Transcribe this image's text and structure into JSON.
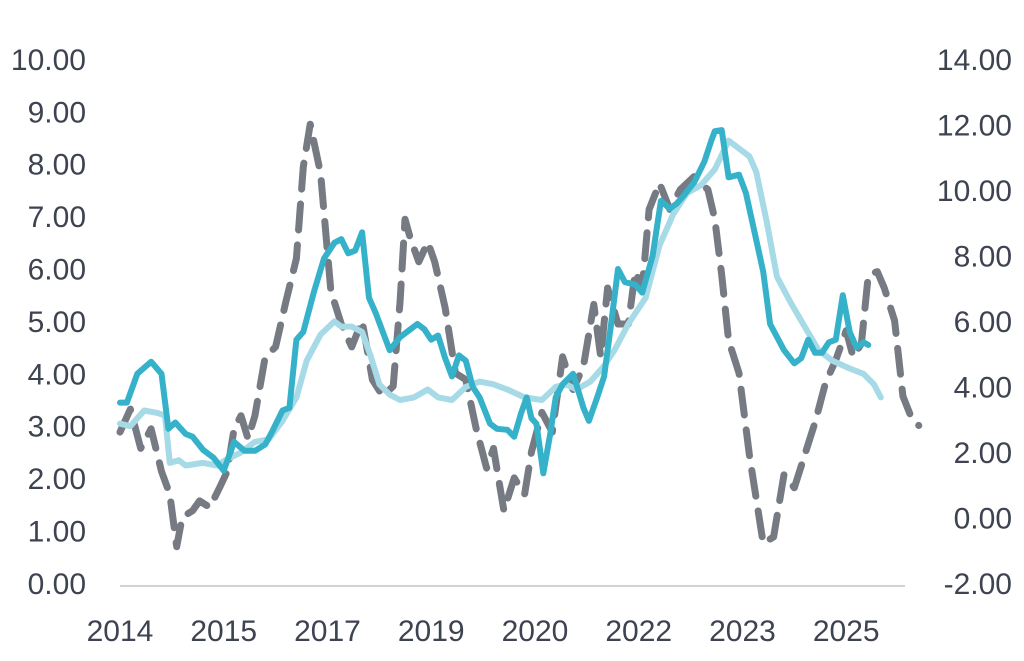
{
  "chart_data": {
    "type": "line",
    "title": "",
    "xlabel": "",
    "ylabel": "",
    "ylabel_right": "",
    "x_range": [
      2014.0,
      2025.35
    ],
    "x_tick_labels": [
      "2014",
      "2015",
      "2017",
      "2019",
      "2020",
      "2022",
      "2023",
      "2025"
    ],
    "x_tick_positions": [
      2014.0,
      2015.5,
      2017.0,
      2018.5,
      2020.0,
      2021.5,
      2023.0,
      2024.5
    ],
    "ylim_left": [
      0,
      10
    ],
    "ylim_right": [
      -2,
      14
    ],
    "y_left_tick_labels": [
      "0.00",
      "1.00",
      "2.00",
      "3.00",
      "4.00",
      "5.00",
      "6.00",
      "7.00",
      "8.00",
      "9.00",
      "10.00"
    ],
    "y_right_tick_labels": [
      "-2.00",
      "0.00",
      "2.00",
      "4.00",
      "6.00",
      "8.00",
      "10.00",
      "12.00",
      "14.00"
    ],
    "grid": false,
    "legend": "none",
    "series": [
      {
        "axis": "left",
        "style": "solid",
        "color": "#35b2c9",
        "points": [
          [
            2014.0,
            3.5
          ],
          [
            2014.1,
            3.5
          ],
          [
            2014.25,
            4.05
          ],
          [
            2014.45,
            4.28
          ],
          [
            2014.6,
            4.05
          ],
          [
            2014.7,
            3.0
          ],
          [
            2014.8,
            3.12
          ],
          [
            2014.95,
            2.9
          ],
          [
            2015.05,
            2.85
          ],
          [
            2015.2,
            2.6
          ],
          [
            2015.35,
            2.45
          ],
          [
            2015.5,
            2.2
          ],
          [
            2015.65,
            2.75
          ],
          [
            2015.8,
            2.58
          ],
          [
            2015.95,
            2.58
          ],
          [
            2016.1,
            2.7
          ],
          [
            2016.2,
            2.95
          ],
          [
            2016.35,
            3.35
          ],
          [
            2016.45,
            3.4
          ],
          [
            2016.55,
            4.7
          ],
          [
            2016.65,
            4.85
          ],
          [
            2016.8,
            5.6
          ],
          [
            2016.95,
            6.25
          ],
          [
            2017.1,
            6.55
          ],
          [
            2017.2,
            6.62
          ],
          [
            2017.3,
            6.35
          ],
          [
            2017.4,
            6.4
          ],
          [
            2017.5,
            6.75
          ],
          [
            2017.6,
            5.5
          ],
          [
            2017.7,
            5.2
          ],
          [
            2017.8,
            4.85
          ],
          [
            2017.9,
            4.5
          ],
          [
            2018.05,
            4.75
          ],
          [
            2018.2,
            4.9
          ],
          [
            2018.3,
            5.0
          ],
          [
            2018.4,
            4.9
          ],
          [
            2018.5,
            4.7
          ],
          [
            2018.6,
            4.78
          ],
          [
            2018.7,
            4.35
          ],
          [
            2018.8,
            4.0
          ],
          [
            2018.9,
            4.4
          ],
          [
            2019.0,
            4.3
          ],
          [
            2019.1,
            3.8
          ],
          [
            2019.2,
            3.6
          ],
          [
            2019.35,
            3.1
          ],
          [
            2019.45,
            3.0
          ],
          [
            2019.6,
            2.98
          ],
          [
            2019.7,
            2.85
          ],
          [
            2019.8,
            3.3
          ],
          [
            2019.88,
            3.6
          ],
          [
            2019.95,
            3.2
          ],
          [
            2020.02,
            3.1
          ],
          [
            2020.12,
            2.15
          ],
          [
            2020.22,
            2.9
          ],
          [
            2020.3,
            3.6
          ],
          [
            2020.4,
            3.85
          ],
          [
            2020.55,
            4.05
          ],
          [
            2020.62,
            3.75
          ],
          [
            2020.7,
            3.4
          ],
          [
            2020.78,
            3.15
          ],
          [
            2020.9,
            3.6
          ],
          [
            2021.0,
            4.0
          ],
          [
            2021.1,
            5.0
          ],
          [
            2021.2,
            6.05
          ],
          [
            2021.3,
            5.8
          ],
          [
            2021.45,
            5.75
          ],
          [
            2021.55,
            5.6
          ],
          [
            2021.7,
            6.3
          ],
          [
            2021.82,
            7.35
          ],
          [
            2021.95,
            7.2
          ],
          [
            2022.05,
            7.3
          ],
          [
            2022.15,
            7.45
          ],
          [
            2022.3,
            7.7
          ],
          [
            2022.45,
            8.1
          ],
          [
            2022.55,
            8.5
          ],
          [
            2022.6,
            8.68
          ],
          [
            2022.7,
            8.7
          ],
          [
            2022.8,
            7.8
          ],
          [
            2022.95,
            7.85
          ],
          [
            2023.05,
            7.5
          ],
          [
            2023.2,
            6.6
          ],
          [
            2023.3,
            6.0
          ],
          [
            2023.4,
            5.0
          ],
          [
            2023.6,
            4.5
          ],
          [
            2023.75,
            4.25
          ],
          [
            2023.85,
            4.35
          ],
          [
            2023.95,
            4.7
          ],
          [
            2024.05,
            4.45
          ],
          [
            2024.15,
            4.45
          ],
          [
            2024.25,
            4.65
          ],
          [
            2024.35,
            4.7
          ],
          [
            2024.45,
            5.55
          ],
          [
            2024.55,
            4.85
          ],
          [
            2024.65,
            4.55
          ],
          [
            2024.75,
            4.65
          ],
          [
            2024.82,
            4.6
          ]
        ]
      },
      {
        "axis": "left",
        "style": "solid",
        "color": "#a6dae6",
        "points": [
          [
            2014.0,
            3.1
          ],
          [
            2014.15,
            3.05
          ],
          [
            2014.35,
            3.35
          ],
          [
            2014.55,
            3.3
          ],
          [
            2014.65,
            3.25
          ],
          [
            2014.72,
            2.35
          ],
          [
            2014.85,
            2.4
          ],
          [
            2014.95,
            2.3
          ],
          [
            2015.2,
            2.35
          ],
          [
            2015.4,
            2.3
          ],
          [
            2015.55,
            2.42
          ],
          [
            2015.75,
            2.55
          ],
          [
            2015.95,
            2.75
          ],
          [
            2016.15,
            2.8
          ],
          [
            2016.35,
            3.15
          ],
          [
            2016.55,
            3.6
          ],
          [
            2016.7,
            4.3
          ],
          [
            2016.9,
            4.8
          ],
          [
            2017.1,
            5.05
          ],
          [
            2017.2,
            4.95
          ],
          [
            2017.35,
            4.95
          ],
          [
            2017.5,
            4.85
          ],
          [
            2017.62,
            4.4
          ],
          [
            2017.75,
            3.85
          ],
          [
            2017.9,
            3.65
          ],
          [
            2018.05,
            3.55
          ],
          [
            2018.25,
            3.6
          ],
          [
            2018.45,
            3.75
          ],
          [
            2018.6,
            3.6
          ],
          [
            2018.8,
            3.55
          ],
          [
            2019.0,
            3.8
          ],
          [
            2019.2,
            3.9
          ],
          [
            2019.4,
            3.85
          ],
          [
            2019.6,
            3.75
          ],
          [
            2019.85,
            3.6
          ],
          [
            2020.1,
            3.55
          ],
          [
            2020.3,
            3.8
          ],
          [
            2020.45,
            3.85
          ],
          [
            2020.6,
            3.75
          ],
          [
            2020.8,
            3.9
          ],
          [
            2021.0,
            4.2
          ],
          [
            2021.15,
            4.5
          ],
          [
            2021.35,
            5.0
          ],
          [
            2021.6,
            5.5
          ],
          [
            2021.8,
            6.5
          ],
          [
            2022.0,
            7.1
          ],
          [
            2022.2,
            7.5
          ],
          [
            2022.4,
            7.65
          ],
          [
            2022.6,
            7.95
          ],
          [
            2022.8,
            8.5
          ],
          [
            2022.95,
            8.35
          ],
          [
            2023.1,
            8.2
          ],
          [
            2023.2,
            7.9
          ],
          [
            2023.35,
            6.95
          ],
          [
            2023.5,
            5.9
          ],
          [
            2023.7,
            5.4
          ],
          [
            2023.9,
            4.95
          ],
          [
            2024.1,
            4.5
          ],
          [
            2024.3,
            4.3
          ],
          [
            2024.55,
            4.15
          ],
          [
            2024.75,
            4.05
          ],
          [
            2024.9,
            3.85
          ],
          [
            2025.0,
            3.6
          ]
        ]
      },
      {
        "axis": "right",
        "style": "dashed",
        "color": "#767a82",
        "points": [
          [
            2014.0,
            2.7
          ],
          [
            2014.15,
            3.4
          ],
          [
            2014.3,
            2.2
          ],
          [
            2014.45,
            2.8
          ],
          [
            2014.6,
            1.5
          ],
          [
            2014.72,
            0.8
          ],
          [
            2014.82,
            -0.8
          ],
          [
            2014.9,
            0.1
          ],
          [
            2015.05,
            0.3
          ],
          [
            2015.15,
            0.6
          ],
          [
            2015.3,
            0.4
          ],
          [
            2015.45,
            1.05
          ],
          [
            2015.55,
            1.5
          ],
          [
            2015.65,
            2.8
          ],
          [
            2015.75,
            3.2
          ],
          [
            2015.85,
            2.5
          ],
          [
            2015.95,
            3.2
          ],
          [
            2016.1,
            5.0
          ],
          [
            2016.25,
            5.3
          ],
          [
            2016.4,
            6.7
          ],
          [
            2016.55,
            8.0
          ],
          [
            2016.65,
            10.8
          ],
          [
            2016.75,
            12.1
          ],
          [
            2016.9,
            10.6
          ],
          [
            2017.05,
            7.0
          ],
          [
            2017.2,
            6.0
          ],
          [
            2017.35,
            5.3
          ],
          [
            2017.5,
            6.1
          ],
          [
            2017.65,
            4.3
          ],
          [
            2017.8,
            3.8
          ],
          [
            2017.95,
            4.1
          ],
          [
            2018.05,
            6.7
          ],
          [
            2018.12,
            9.2
          ],
          [
            2018.2,
            8.6
          ],
          [
            2018.32,
            7.9
          ],
          [
            2018.45,
            8.5
          ],
          [
            2018.55,
            7.9
          ],
          [
            2018.7,
            6.5
          ],
          [
            2018.85,
            4.5
          ],
          [
            2019.0,
            4.3
          ],
          [
            2019.15,
            2.8
          ],
          [
            2019.3,
            1.6
          ],
          [
            2019.4,
            2.2
          ],
          [
            2019.55,
            0.3
          ],
          [
            2019.7,
            1.3
          ],
          [
            2019.85,
            0.8
          ],
          [
            2019.95,
            2.1
          ],
          [
            2020.1,
            3.3
          ],
          [
            2020.25,
            2.7
          ],
          [
            2020.4,
            5.0
          ],
          [
            2020.55,
            4.0
          ],
          [
            2020.7,
            4.7
          ],
          [
            2020.85,
            6.6
          ],
          [
            2020.95,
            5.0
          ],
          [
            2021.05,
            7.1
          ],
          [
            2021.2,
            6.0
          ],
          [
            2021.35,
            6.0
          ],
          [
            2021.45,
            7.6
          ],
          [
            2021.55,
            7.1
          ],
          [
            2021.65,
            9.5
          ],
          [
            2021.8,
            10.3
          ],
          [
            2021.95,
            9.5
          ],
          [
            2022.1,
            10.1
          ],
          [
            2022.3,
            10.5
          ],
          [
            2022.5,
            10.1
          ],
          [
            2022.6,
            9.2
          ],
          [
            2022.7,
            7.5
          ],
          [
            2022.8,
            5.5
          ],
          [
            2022.95,
            4.5
          ],
          [
            2023.1,
            2.0
          ],
          [
            2023.3,
            -0.7
          ],
          [
            2023.45,
            -0.5
          ],
          [
            2023.6,
            1.4
          ],
          [
            2023.75,
            1.0
          ],
          [
            2023.9,
            2.0
          ],
          [
            2024.05,
            3.0
          ],
          [
            2024.2,
            4.2
          ],
          [
            2024.35,
            4.9
          ],
          [
            2024.5,
            5.8
          ],
          [
            2024.6,
            5.0
          ],
          [
            2024.72,
            5.4
          ],
          [
            2024.82,
            7.5
          ],
          [
            2024.95,
            7.6
          ],
          [
            2025.05,
            7.1
          ],
          [
            2025.2,
            6.1
          ],
          [
            2025.32,
            3.8
          ],
          [
            2025.45,
            3.1
          ],
          [
            2025.55,
            2.9
          ]
        ]
      }
    ]
  }
}
